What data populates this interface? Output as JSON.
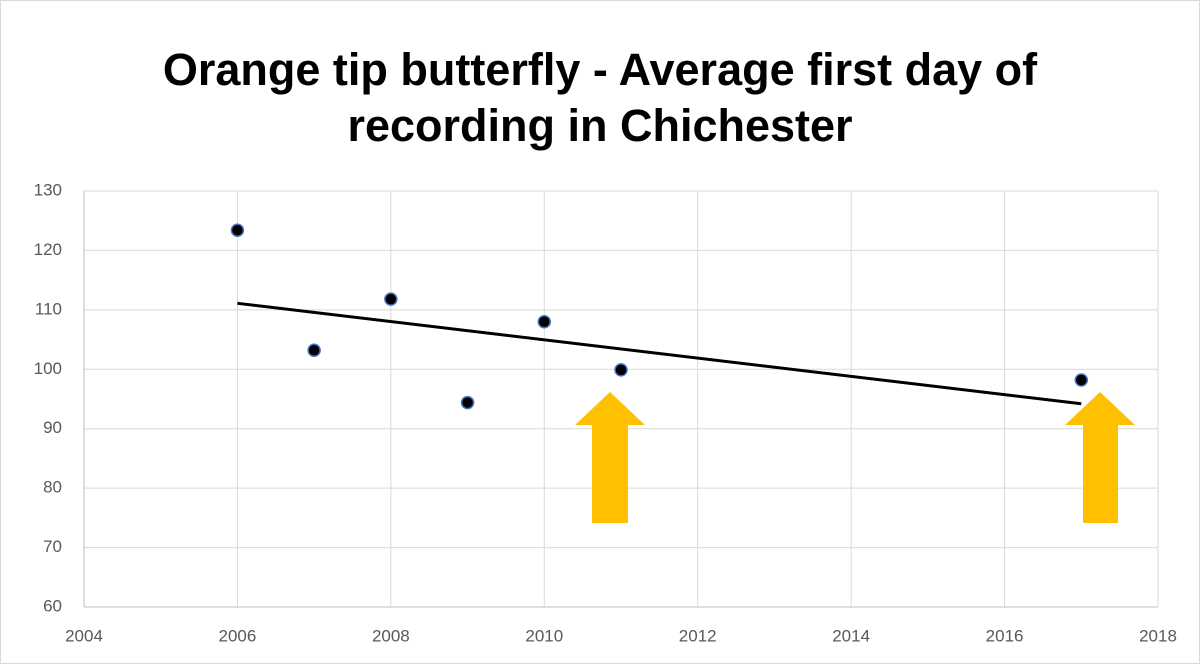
{
  "chart_data": {
    "type": "scatter",
    "title": "Orange tip butterfly - Average first day of recording in  Chichester",
    "x": [
      2006,
      2007,
      2008,
      2009,
      2010,
      2011,
      2017
    ],
    "series": [
      {
        "color": "#000000",
        "values": [
          123.4,
          103.2,
          111.8,
          94.4,
          108,
          99.9,
          98.2
        ]
      }
    ],
    "trendline": {
      "color": "#000000",
      "x": [
        2006,
        2017
      ],
      "values": [
        111.1,
        94.2
      ]
    },
    "xlim": [
      2004,
      2018
    ],
    "xticks": [
      2004,
      2006,
      2008,
      2010,
      2012,
      2014,
      2016,
      2018
    ],
    "ylim": [
      60,
      130
    ],
    "yticks": [
      60,
      70,
      80,
      90,
      100,
      110,
      120,
      130
    ],
    "grid": true
  }
}
